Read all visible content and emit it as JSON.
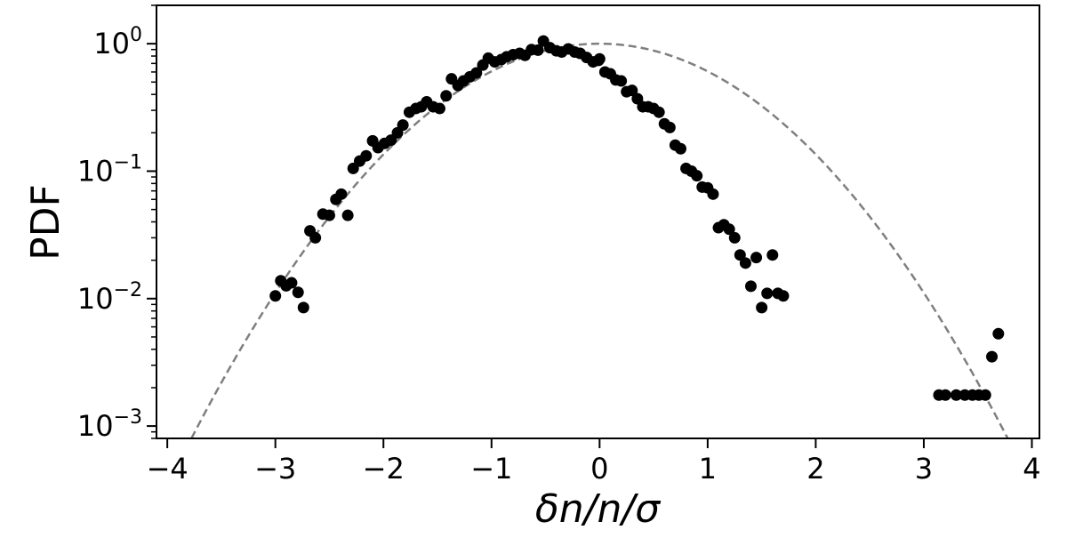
{
  "chart_data": {
    "type": "scatter",
    "xlabel": "δn/n/σ",
    "ylabel": "PDF",
    "xlim": [
      -4.1,
      4.07
    ],
    "ylim": [
      0.0008,
      2.0
    ],
    "yscale": "log",
    "grid": false,
    "x_ticks": [
      -4,
      -3,
      -2,
      -1,
      0,
      1,
      2,
      3,
      4
    ],
    "x_tick_labels": [
      "−4",
      "−3",
      "−2",
      "−1",
      "0",
      "1",
      "2",
      "3",
      "4"
    ],
    "y_ticks": [
      {
        "value": 1,
        "base": "10",
        "exp": "0"
      },
      {
        "value": 0.1,
        "base": "10",
        "exp": "−1"
      },
      {
        "value": 0.01,
        "base": "10",
        "exp": "−2"
      },
      {
        "value": 0.001,
        "base": "10",
        "exp": "−3"
      }
    ],
    "series": [
      {
        "kind": "points",
        "color": "#000000",
        "points": [
          [
            -3.0,
            0.0105
          ],
          [
            -2.95,
            0.0138
          ],
          [
            -2.9,
            0.0126
          ],
          [
            -2.85,
            0.0133
          ],
          [
            -2.79,
            0.0112
          ],
          [
            -2.74,
            0.0085
          ],
          [
            -2.68,
            0.034
          ],
          [
            -2.63,
            0.03
          ],
          [
            -2.56,
            0.046
          ],
          [
            -2.5,
            0.045
          ],
          [
            -2.44,
            0.06
          ],
          [
            -2.39,
            0.066
          ],
          [
            -2.33,
            0.045
          ],
          [
            -2.28,
            0.105
          ],
          [
            -2.22,
            0.12
          ],
          [
            -2.16,
            0.132
          ],
          [
            -2.1,
            0.173
          ],
          [
            -2.05,
            0.153
          ],
          [
            -1.99,
            0.165
          ],
          [
            -1.93,
            0.175
          ],
          [
            -1.87,
            0.2
          ],
          [
            -1.82,
            0.23
          ],
          [
            -1.76,
            0.29
          ],
          [
            -1.7,
            0.31
          ],
          [
            -1.65,
            0.32
          ],
          [
            -1.6,
            0.35
          ],
          [
            -1.54,
            0.32
          ],
          [
            -1.48,
            0.31
          ],
          [
            -1.42,
            0.39
          ],
          [
            -1.37,
            0.53
          ],
          [
            -1.31,
            0.47
          ],
          [
            -1.26,
            0.51
          ],
          [
            -1.2,
            0.55
          ],
          [
            -1.14,
            0.59
          ],
          [
            -1.08,
            0.68
          ],
          [
            -1.03,
            0.77
          ],
          [
            -0.97,
            0.72
          ],
          [
            -0.91,
            0.75
          ],
          [
            -0.86,
            0.79
          ],
          [
            -0.8,
            0.82
          ],
          [
            -0.74,
            0.84
          ],
          [
            -0.69,
            0.81
          ],
          [
            -0.63,
            0.9
          ],
          [
            -0.57,
            0.89
          ],
          [
            -0.52,
            1.05
          ],
          [
            -0.46,
            0.93
          ],
          [
            -0.4,
            0.88
          ],
          [
            -0.35,
            0.86
          ],
          [
            -0.29,
            0.91
          ],
          [
            -0.23,
            0.86
          ],
          [
            -0.18,
            0.84
          ],
          [
            -0.12,
            0.78
          ],
          [
            -0.06,
            0.72
          ],
          [
            -0.01,
            0.74
          ],
          [
            0.0,
            0.76
          ],
          [
            0.05,
            0.6
          ],
          [
            0.1,
            0.58
          ],
          [
            0.15,
            0.52
          ],
          [
            0.2,
            0.51
          ],
          [
            0.25,
            0.42
          ],
          [
            0.3,
            0.43
          ],
          [
            0.35,
            0.37
          ],
          [
            0.4,
            0.32
          ],
          [
            0.45,
            0.32
          ],
          [
            0.5,
            0.31
          ],
          [
            0.55,
            0.29
          ],
          [
            0.6,
            0.235
          ],
          [
            0.65,
            0.22
          ],
          [
            0.7,
            0.16
          ],
          [
            0.75,
            0.15
          ],
          [
            0.8,
            0.105
          ],
          [
            0.85,
            0.1
          ],
          [
            0.9,
            0.092
          ],
          [
            0.95,
            0.075
          ],
          [
            1.0,
            0.074
          ],
          [
            1.05,
            0.066
          ],
          [
            1.1,
            0.036
          ],
          [
            1.15,
            0.038
          ],
          [
            1.2,
            0.035
          ],
          [
            1.25,
            0.03
          ],
          [
            1.3,
            0.022
          ],
          [
            1.35,
            0.019
          ],
          [
            1.4,
            0.0125
          ],
          [
            1.45,
            0.021
          ],
          [
            1.5,
            0.0085
          ],
          [
            1.55,
            0.011
          ],
          [
            1.6,
            0.022
          ],
          [
            1.65,
            0.011
          ],
          [
            1.7,
            0.0105
          ],
          [
            3.14,
            0.00175
          ],
          [
            3.2,
            0.00175
          ],
          [
            3.3,
            0.00175
          ],
          [
            3.38,
            0.00175
          ],
          [
            3.45,
            0.00175
          ],
          [
            3.51,
            0.00175
          ],
          [
            3.57,
            0.00175
          ],
          [
            3.63,
            0.0035
          ],
          [
            3.69,
            0.0053
          ]
        ]
      },
      {
        "kind": "curve",
        "function": "gaussian",
        "mean": 0,
        "sigma": 1,
        "amplitude": 1,
        "color": "#7f7f7f",
        "style": "dashed"
      }
    ]
  }
}
